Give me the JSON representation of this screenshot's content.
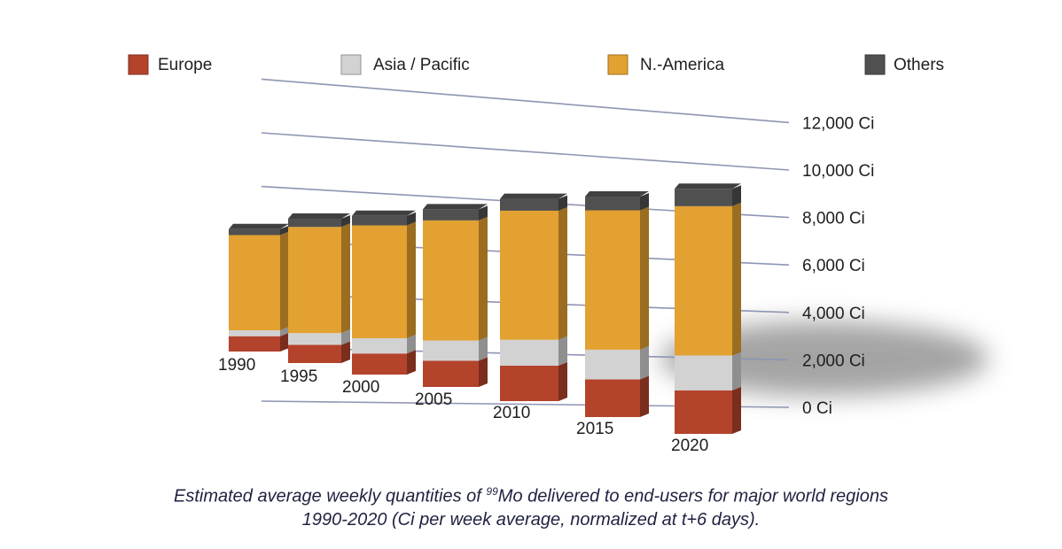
{
  "chart_data": {
    "type": "bar",
    "stacked": true,
    "categories": [
      "1990",
      "1995",
      "2000",
      "2005",
      "2010",
      "2015",
      "2020"
    ],
    "series": [
      {
        "name": "Europe",
        "color": "#b4432c",
        "values": [
          900,
          1000,
          1100,
          1300,
          1650,
          1650,
          1750
        ]
      },
      {
        "name": "Asia / Pacific",
        "color": "#d2d2d2",
        "values": [
          350,
          650,
          800,
          1000,
          1200,
          1300,
          1400
        ]
      },
      {
        "name": "N.-America",
        "color": "#e2a131",
        "values": [
          5600,
          5850,
          5900,
          5950,
          6000,
          6100,
          6000
        ]
      },
      {
        "name": "Others",
        "color": "#505050",
        "values": [
          350,
          450,
          500,
          550,
          550,
          600,
          700
        ]
      }
    ],
    "y_ticks": [
      "0 Ci",
      "2,000 Ci",
      "4,000 Ci",
      "6,000 Ci",
      "8,000 Ci",
      "10,000 Ci",
      "12,000 Ci"
    ],
    "ylim": [
      0,
      12000
    ],
    "legend_position": "top",
    "grid": true
  },
  "caption": {
    "line1_pre": "Estimated average weekly quantities of ",
    "line1_sup": "99",
    "line1_post": "Mo delivered to end-users for major world regions",
    "line2": "1990-2020 (Ci per week average, normalized at t+6 days)."
  }
}
